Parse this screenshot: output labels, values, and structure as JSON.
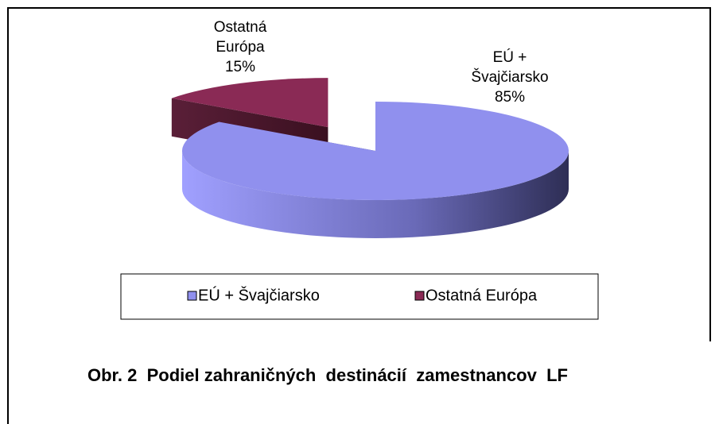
{
  "chart_data": {
    "type": "pie",
    "caption": "Obr. 2  Podiel zahraničných  destinácií  zamestnancov  LF",
    "categories": [
      "EÚ + Švajčiarsko",
      "Ostatná Európa"
    ],
    "values": [
      85,
      15
    ],
    "value_labels": [
      "85%",
      "15%"
    ],
    "colors": [
      "#9090ee",
      "#8a2a55"
    ],
    "legend": "bottom",
    "three_d": true
  }
}
